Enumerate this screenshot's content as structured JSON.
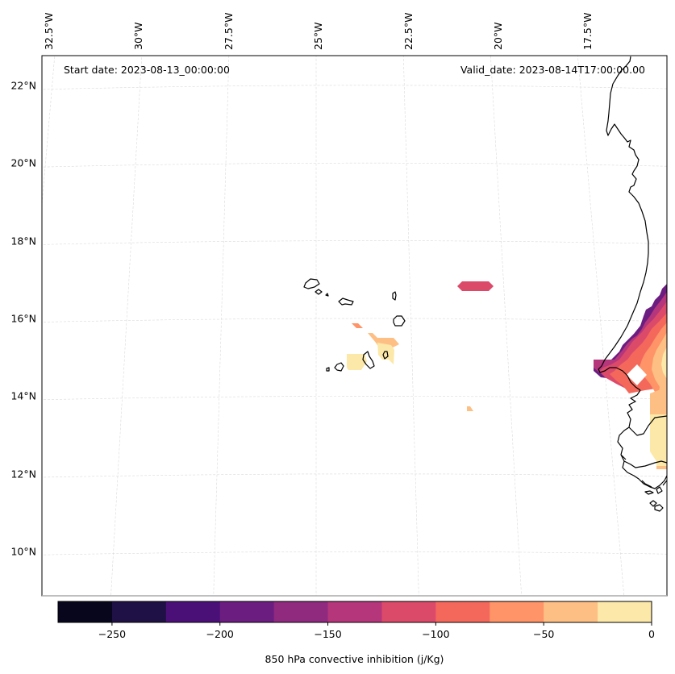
{
  "chart_data": {
    "type": "heatmap",
    "title": "",
    "annotations": {
      "start_date": "Start date: 2023-08-13_00:00:00",
      "valid_date": "Valid_date: 2023-08-14T17:00:00.00"
    },
    "projection": "Lambert conformal (regional, Cabo Verde / Senegal)",
    "lon_ticks": [
      {
        "value": -32.5,
        "label": "32.5°W"
      },
      {
        "value": -30,
        "label": "30°W"
      },
      {
        "value": -27.5,
        "label": "27.5°W"
      },
      {
        "value": -25,
        "label": "25°W"
      },
      {
        "value": -22.5,
        "label": "22.5°W"
      },
      {
        "value": -20,
        "label": "20°W"
      },
      {
        "value": -17.5,
        "label": "17.5°W"
      }
    ],
    "lat_ticks": [
      {
        "value": 22,
        "label": "22°N"
      },
      {
        "value": 20,
        "label": "20°N"
      },
      {
        "value": 18,
        "label": "18°N"
      },
      {
        "value": 16,
        "label": "16°N"
      },
      {
        "value": 14,
        "label": "14°N"
      },
      {
        "value": 12,
        "label": "12°N"
      },
      {
        "value": 10,
        "label": "10°N"
      }
    ],
    "grid": true,
    "colorbar": {
      "label": "850 hPa convective inhibition (j/Kg)",
      "orientation": "horizontal",
      "placement": "bottom",
      "range": [
        -275,
        0
      ],
      "levels": [
        -275,
        -250,
        -225,
        -200,
        -175,
        -150,
        -125,
        -100,
        -75,
        -50,
        -25,
        0
      ],
      "colors": [
        "#07061c",
        "#1f1145",
        "#4a1078",
        "#6c1d80",
        "#8f2a7f",
        "#b5367a",
        "#dc4a6a",
        "#f4685c",
        "#fe9467",
        "#febf84",
        "#fce8a8"
      ],
      "ticks": [
        {
          "value": -250,
          "label": "−250"
        },
        {
          "value": -200,
          "label": "−200"
        },
        {
          "value": -150,
          "label": "−150"
        },
        {
          "value": -100,
          "label": "−100"
        },
        {
          "value": -50,
          "label": "−50"
        },
        {
          "value": 0,
          "label": "0"
        }
      ]
    },
    "filled_regions": [
      {
        "name": "offshore-patch-north",
        "lon": -20.5,
        "lat": 16.8,
        "level_bin": "-125 to -100"
      },
      {
        "name": "cabo-verde-sal-patch",
        "lon": -23.1,
        "lat": 15.3,
        "level_bin": "-50 to 0"
      },
      {
        "name": "cabo-verde-west-patch",
        "lon": -24.2,
        "lat": 15.0,
        "level_bin": "-25 to 0"
      },
      {
        "name": "cabo-verde-sliver",
        "lon": -24.1,
        "lat": 15.75,
        "level_bin": "-75 to -50"
      },
      {
        "name": "small-patch-south",
        "lon": -21.5,
        "lat": 13.7,
        "level_bin": "-50 to -25"
      },
      {
        "name": "senegal-coast-field",
        "lon": -16.5,
        "lat": 14.8,
        "level_bin": "-175 to 0"
      },
      {
        "name": "gambia-guinea-bissau-field",
        "lon": -16.2,
        "lat": 12.8,
        "level_bin": "-50 to 0"
      }
    ]
  }
}
